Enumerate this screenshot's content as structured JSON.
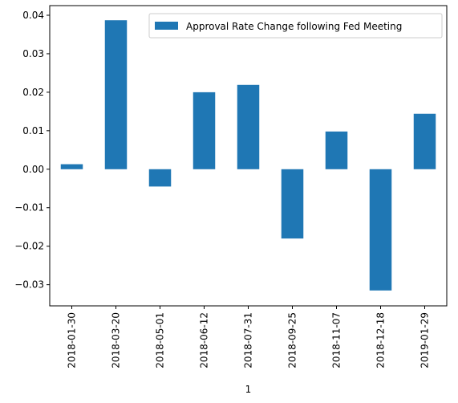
{
  "chart_data": {
    "type": "bar",
    "categories": [
      "2018-01-30",
      "2018-03-20",
      "2018-05-01",
      "2018-06-12",
      "2018-07-31",
      "2018-09-25",
      "2018-11-07",
      "2018-12-18",
      "2019-01-29"
    ],
    "series": [
      {
        "name": "Approval Rate Change following Fed Meeting",
        "values": [
          0.0013,
          0.0387,
          -0.0045,
          0.02,
          0.0219,
          -0.018,
          0.0098,
          -0.0315,
          0.0144
        ],
        "color": "#1f77b4"
      }
    ],
    "title": "",
    "xlabel": "1",
    "ylabel": "",
    "ylim": [
      -0.0355,
      0.0425
    ],
    "yticks": [
      -0.03,
      -0.02,
      -0.01,
      0.0,
      0.01,
      0.02,
      0.03,
      0.04
    ],
    "ytick_labels": [
      "−0.03",
      "−0.02",
      "−0.01",
      "0.00",
      "0.01",
      "0.02",
      "0.03",
      "0.04"
    ],
    "grid": false,
    "legend_position": "upper right"
  }
}
